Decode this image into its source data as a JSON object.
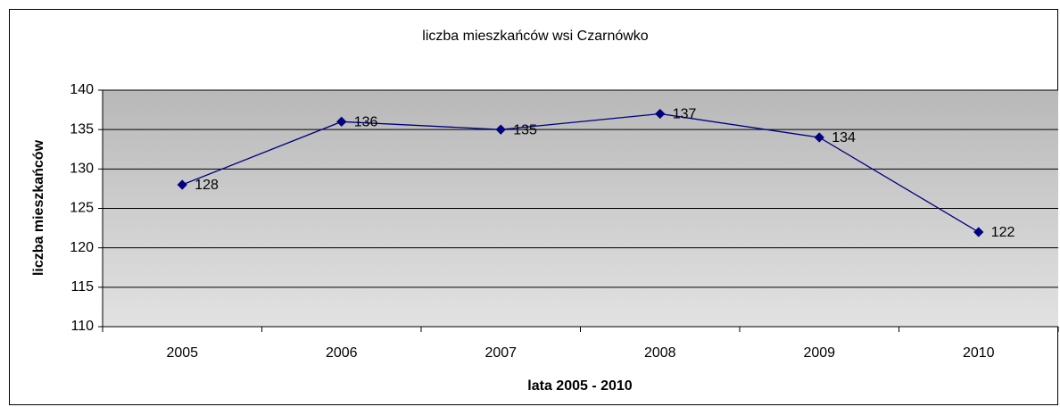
{
  "chart_data": {
    "type": "line",
    "title": "liczba mieszkańców wsi Czarnówko",
    "x_label": "lata 2005 - 2010",
    "y_label": "liczba mieszkańców",
    "categories": [
      "2005",
      "2006",
      "2007",
      "2008",
      "2009",
      "2010"
    ],
    "series": [
      {
        "name": "liczba mieszkańców",
        "color": "#000080",
        "values": [
          128,
          136,
          135,
          137,
          134,
          122
        ]
      }
    ],
    "ylim": [
      110,
      140
    ],
    "yticks": [
      110,
      115,
      120,
      125,
      130,
      135,
      140
    ],
    "grid": true,
    "data_labels": true
  }
}
